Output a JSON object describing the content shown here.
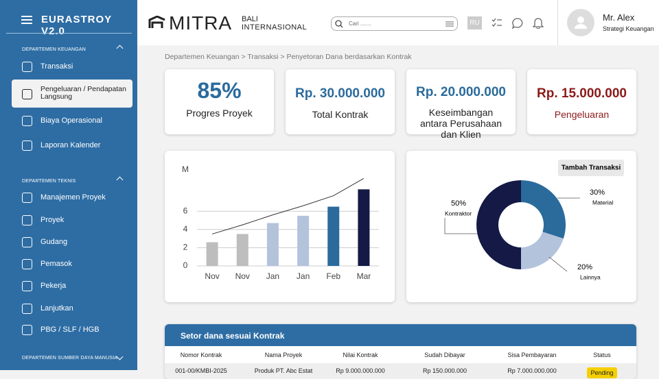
{
  "sidebar": {
    "title": "EURASTROY V2.0",
    "sections": [
      {
        "title": "DEPARTEMEN KEUANGAN",
        "items": [
          "Transaksi",
          "Pengeluaran / Pendapatan Langsung",
          "Biaya Operasional",
          "Laporan Kalender"
        ]
      },
      {
        "title": "DEPARTEMEN TEKNIS",
        "items": [
          "Manajemen Proyek",
          "Proyek",
          "Gudang",
          "Pemasok",
          "Pekerja",
          "Lanjutkan",
          "PBG / SLF / HGB"
        ]
      },
      {
        "title": "DEPARTEMEN SUMBER DAYA MANUSIA",
        "items": []
      }
    ]
  },
  "header": {
    "logo": "MITRA",
    "logo_sub_1": "BALI",
    "logo_sub_2": "INTERNASIONAL",
    "search_placeholder": "Cari .......",
    "language": "RU",
    "user_name": "Mr. Alex",
    "user_role": "Strategi Keuangan"
  },
  "breadcrumb": "Departemen Keuangan > Transaksi > Penyetoran Dana berdasarkan Kontrak",
  "cards": [
    {
      "value": "85%",
      "label": "Progres Proyek"
    },
    {
      "value": "Rp. 30.000.000",
      "label": "Total Kontrak"
    },
    {
      "value": "Rp. 20.000.000",
      "label": "Keseimbangan antara Perusahaan dan Klien"
    },
    {
      "value": "Rp. 15.000.000",
      "label": "Pengeluaran"
    }
  ],
  "bar_chart": {
    "type": "bar",
    "unit": "M",
    "categories": [
      "Nov",
      "Nov",
      "Jan",
      "Jan",
      "Feb",
      "Mar"
    ],
    "values": [
      2.6,
      3.5,
      4.7,
      5.5,
      6.5,
      8.4
    ],
    "colors": [
      "#bdbdbd",
      "#bdbdbd",
      "#b4c3dc",
      "#b4c3dc",
      "#2a6b9c",
      "#141a45"
    ],
    "line_values": [
      3.5,
      4.5,
      5.6,
      6.6,
      7.7,
      9.6
    ],
    "line_color": "#333333",
    "ylim": [
      0,
      10
    ],
    "yticks": [
      0,
      2,
      4,
      6
    ],
    "grid": true
  },
  "donut_chart": {
    "type": "pie",
    "button": "Tambah Transaksi",
    "categories": [
      "Material",
      "Lainnya",
      "Kontraktor"
    ],
    "values": [
      30,
      20,
      50
    ],
    "value_labels": [
      "30%",
      "20%",
      "50%"
    ],
    "colors": [
      "#2a6b9c",
      "#b4c3dc",
      "#141a45"
    ]
  },
  "table": {
    "title": "Setor dana sesuai Kontrak",
    "columns": [
      "Nomor Kontrak",
      "Nama Proyek",
      "Nilai Kontrak",
      "Sudah Dibayar",
      "Sisa Pembayaran",
      "Status"
    ],
    "rows": [
      [
        "001-00/KMBI-2025",
        "Produk PT. Abc Estat",
        "Rp 9.000.000.000",
        "Rp 150.000.000",
        "Rp 7.000.000.000",
        "Pending"
      ]
    ]
  }
}
